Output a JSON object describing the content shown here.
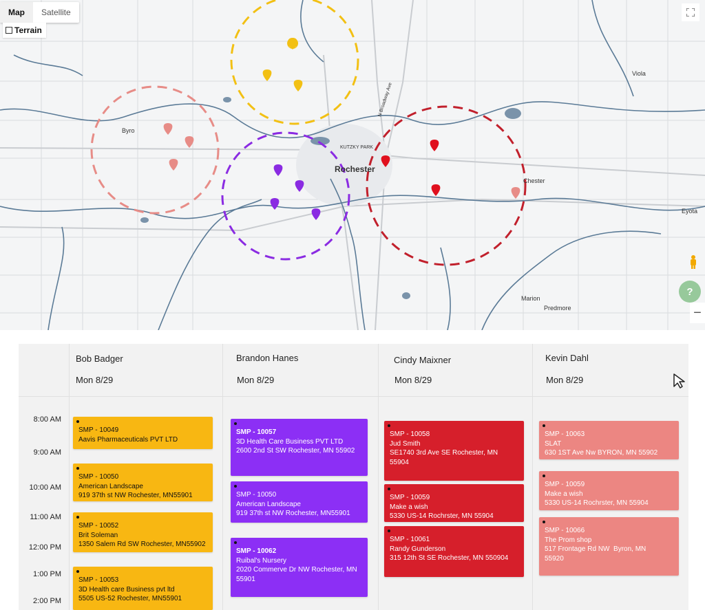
{
  "map": {
    "map_type_buttons": [
      "Map",
      "Satellite"
    ],
    "active_map_type": "Map",
    "terrain_label": "Terrain",
    "labels": {
      "rochester": "Rochester",
      "kutzky_park": "KUTZKY PARK",
      "byron": "Byro",
      "chester": "Chester",
      "viola": "Viola",
      "eyota": "Eyota",
      "marion": "Marion",
      "predmore": "Predmore",
      "broadway_ave": "N Broadway Ave"
    },
    "zones": [
      {
        "name": "Bob Badger",
        "color": "#f2c014",
        "pins": 3
      },
      {
        "name": "Kevin Dahl",
        "color": "#e78c87",
        "pins": 3
      },
      {
        "name": "Brandon Hanes",
        "color": "#8a2be2",
        "pins": 4
      },
      {
        "name": "Cindy Maixner",
        "color": "#c1202c",
        "pins": 4
      }
    ],
    "help_glyph": "?",
    "zoom_out_glyph": "−"
  },
  "scheduler": {
    "technicians": [
      {
        "name": "Bob Badger",
        "date": "Mon 8/29",
        "color": "#f8b712",
        "jobs": [
          {
            "id": "SMP - 10049",
            "lines": [
              "Aavis Pharmaceuticals PVT LTD"
            ]
          },
          {
            "id": "SMP - 10050",
            "lines": [
              "American Landscape",
              "919 37th st NW Rochester, MN55901"
            ]
          },
          {
            "id": "SMP - 10052",
            "lines": [
              "Brit Soleman",
              "1350 Salem Rd SW Rochester, MN55902"
            ]
          },
          {
            "id": "SMP - 10053",
            "lines": [
              "3D Health care Business pvt ltd",
              "5505 US-52 Rochester, MN55901"
            ]
          }
        ]
      },
      {
        "name": "Brandon Hanes",
        "date": "Mon 8/29",
        "color": "#8c2ff5",
        "jobs": [
          {
            "id": "SMP - 10057",
            "lines": [
              "3D Health Care Business PVT LTD",
              "2600 2nd St SW Rochester, MN 55902"
            ]
          },
          {
            "id": "SMP - 10050",
            "lines": [
              "American Landscape",
              "919 37th st NW Rochester, MN55901"
            ]
          },
          {
            "id": "SMP - 10062",
            "lines": [
              "Ruibal's Nursery",
              "2020 Commerve Dr NW Rochester, MN",
              "55901"
            ]
          }
        ]
      },
      {
        "name": "Cindy Maixner",
        "date": "Mon 8/29",
        "color": "#d61f2b",
        "jobs": [
          {
            "id": "SMP - 10058",
            "lines": [
              "Jud Smith",
              "SE1740 3rd Ave SE Rochester, MN 55904"
            ]
          },
          {
            "id": "SMP - 10059",
            "lines": [
              "Make a wish",
              "5330 US-14 Rochrster, MN 55904"
            ]
          },
          {
            "id": "SMP - 10061",
            "lines": [
              "Randy Gunderson",
              "315 12th St SE Rochester, MN 550904"
            ]
          }
        ]
      },
      {
        "name": "Kevin Dahl",
        "date": "Mon 8/29",
        "color": "#ec8682",
        "jobs": [
          {
            "id": "SMP - 10063",
            "lines": [
              "SLAT",
              "630 1ST Ave Nw BYRON, MN 55902"
            ]
          },
          {
            "id": "SMP - 10059",
            "lines": [
              "Make a wish",
              "5330 US-14 Rochrster, MN 55904"
            ]
          },
          {
            "id": "SMP - 10066",
            "lines": [
              "The Prom shop",
              "517 Frontage Rd NW  Byron, MN",
              "55920"
            ]
          }
        ]
      }
    ],
    "time_slots": [
      "8:00 AM",
      "9:00 AM",
      "10:00 AM",
      "11:00 AM",
      "12:00 PM",
      "1:00 PM",
      "2:00 PM"
    ]
  }
}
